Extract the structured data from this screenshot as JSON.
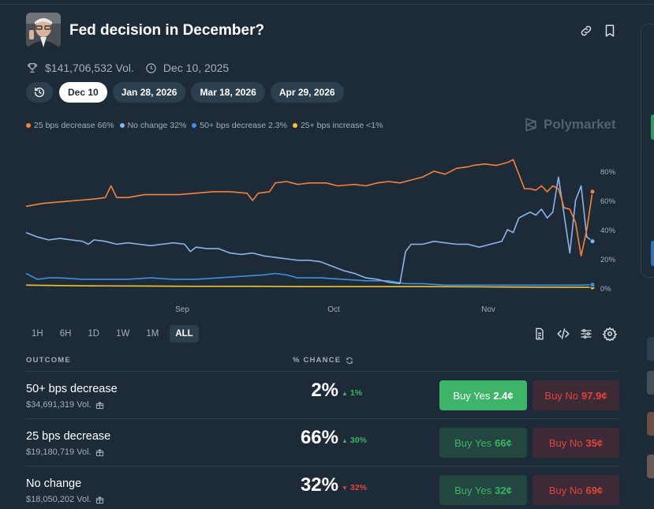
{
  "market": {
    "title": "Fed decision in December?",
    "volume": "$141,706,532 Vol.",
    "end_date": "Dec 10, 2025"
  },
  "date_tabs": [
    {
      "label": "Dec 10",
      "active": true
    },
    {
      "label": "Jan 28, 2026",
      "active": false
    },
    {
      "label": "Mar 18, 2026",
      "active": false
    },
    {
      "label": "Apr 29, 2026",
      "active": false
    }
  ],
  "legend": [
    {
      "label": "25 bps decrease 66%",
      "color": "#f5813b"
    },
    {
      "label": "No change 32%",
      "color": "#8db3e8"
    },
    {
      "label": "50+ bps decrease 2.3%",
      "color": "#3f8fe0"
    },
    {
      "label": "25+ bps increase <1%",
      "color": "#f2c230"
    }
  ],
  "brand": "Polymarket",
  "chart_data": {
    "type": "line",
    "x_ticks": [
      "Sep",
      "Oct",
      "Nov"
    ],
    "y_ticks": [
      "80%",
      "60%",
      "40%",
      "20%",
      "0%"
    ],
    "ylim": [
      0,
      100
    ],
    "x_range": [
      0,
      100
    ],
    "series": [
      {
        "name": "25 bps decrease",
        "color": "#f5813b",
        "points": [
          [
            0,
            56
          ],
          [
            3,
            58
          ],
          [
            6,
            59
          ],
          [
            9,
            60
          ],
          [
            12,
            61
          ],
          [
            14,
            62
          ],
          [
            15,
            70
          ],
          [
            16,
            62
          ],
          [
            18,
            62
          ],
          [
            21,
            64
          ],
          [
            24,
            64
          ],
          [
            27,
            64
          ],
          [
            30,
            65
          ],
          [
            33,
            66
          ],
          [
            36,
            66
          ],
          [
            39,
            65
          ],
          [
            40,
            60
          ],
          [
            41,
            65
          ],
          [
            43,
            66
          ],
          [
            44,
            72
          ],
          [
            46,
            73
          ],
          [
            48,
            71
          ],
          [
            50,
            72
          ],
          [
            53,
            72
          ],
          [
            55,
            70
          ],
          [
            58,
            71
          ],
          [
            60,
            70
          ],
          [
            62,
            72
          ],
          [
            64,
            73
          ],
          [
            66,
            72
          ],
          [
            68,
            74
          ],
          [
            70,
            76
          ],
          [
            72,
            80
          ],
          [
            74,
            78
          ],
          [
            76,
            82
          ],
          [
            78,
            83
          ],
          [
            79,
            84
          ],
          [
            81,
            85
          ],
          [
            83,
            84
          ],
          [
            85,
            86
          ],
          [
            86,
            88
          ],
          [
            87,
            78
          ],
          [
            88,
            68
          ],
          [
            89,
            68
          ],
          [
            90,
            67
          ],
          [
            91,
            70
          ],
          [
            92,
            66
          ],
          [
            93,
            70
          ],
          [
            94,
            68
          ],
          [
            95,
            55
          ],
          [
            96,
            54
          ],
          [
            97,
            45
          ],
          [
            98,
            22
          ],
          [
            99,
            40
          ],
          [
            100,
            66
          ]
        ]
      },
      {
        "name": "No change",
        "color": "#8db3e8",
        "points": [
          [
            0,
            38
          ],
          [
            2,
            35
          ],
          [
            4,
            33
          ],
          [
            6,
            34
          ],
          [
            8,
            33
          ],
          [
            10,
            32
          ],
          [
            11,
            30
          ],
          [
            12,
            33
          ],
          [
            14,
            32
          ],
          [
            16,
            30
          ],
          [
            18,
            31
          ],
          [
            20,
            30
          ],
          [
            22,
            29
          ],
          [
            24,
            30
          ],
          [
            26,
            31
          ],
          [
            28,
            30
          ],
          [
            29,
            25
          ],
          [
            30,
            28
          ],
          [
            32,
            27
          ],
          [
            34,
            27
          ],
          [
            36,
            24
          ],
          [
            38,
            23
          ],
          [
            40,
            24
          ],
          [
            42,
            22
          ],
          [
            44,
            21
          ],
          [
            46,
            20
          ],
          [
            48,
            19
          ],
          [
            50,
            19
          ],
          [
            52,
            18
          ],
          [
            54,
            15
          ],
          [
            56,
            12
          ],
          [
            58,
            10
          ],
          [
            60,
            7
          ],
          [
            62,
            6
          ],
          [
            64,
            4
          ],
          [
            66,
            3
          ],
          [
            67,
            25
          ],
          [
            68,
            30
          ],
          [
            70,
            30
          ],
          [
            72,
            32
          ],
          [
            74,
            31
          ],
          [
            76,
            30
          ],
          [
            78,
            30
          ],
          [
            80,
            28
          ],
          [
            82,
            30
          ],
          [
            84,
            32
          ],
          [
            85,
            40
          ],
          [
            86,
            38
          ],
          [
            87,
            48
          ],
          [
            88,
            50
          ],
          [
            89,
            52
          ],
          [
            90,
            50
          ],
          [
            91,
            54
          ],
          [
            92,
            48
          ],
          [
            93,
            52
          ],
          [
            94,
            76
          ],
          [
            95,
            50
          ],
          [
            96,
            24
          ],
          [
            97,
            60
          ],
          [
            98,
            70
          ],
          [
            99,
            35
          ],
          [
            100,
            32
          ]
        ]
      },
      {
        "name": "50+ bps decrease",
        "color": "#3f8fe0",
        "points": [
          [
            0,
            10
          ],
          [
            2,
            6
          ],
          [
            4,
            7
          ],
          [
            6,
            7
          ],
          [
            10,
            6
          ],
          [
            14,
            6
          ],
          [
            18,
            6
          ],
          [
            22,
            7
          ],
          [
            26,
            6
          ],
          [
            30,
            6
          ],
          [
            34,
            7
          ],
          [
            38,
            8
          ],
          [
            42,
            9
          ],
          [
            44,
            10
          ],
          [
            46,
            9
          ],
          [
            48,
            7
          ],
          [
            52,
            7
          ],
          [
            56,
            6
          ],
          [
            60,
            5
          ],
          [
            64,
            5
          ],
          [
            67,
            3
          ],
          [
            70,
            3
          ],
          [
            74,
            2
          ],
          [
            78,
            2
          ],
          [
            82,
            2
          ],
          [
            86,
            2
          ],
          [
            90,
            2
          ],
          [
            94,
            2
          ],
          [
            98,
            2
          ],
          [
            100,
            2.3
          ]
        ]
      },
      {
        "name": "25+ bps increase",
        "color": "#f2c230",
        "points": [
          [
            0,
            2
          ],
          [
            10,
            1.5
          ],
          [
            20,
            1.4
          ],
          [
            30,
            1.2
          ],
          [
            40,
            1.2
          ],
          [
            50,
            1
          ],
          [
            60,
            1
          ],
          [
            70,
            1
          ],
          [
            80,
            0.8
          ],
          [
            90,
            0.6
          ],
          [
            100,
            0.5
          ]
        ]
      }
    ]
  },
  "time_ranges": [
    {
      "label": "1H",
      "active": false
    },
    {
      "label": "6H",
      "active": false
    },
    {
      "label": "1D",
      "active": false
    },
    {
      "label": "1W",
      "active": false
    },
    {
      "label": "1M",
      "active": false
    },
    {
      "label": "ALL",
      "active": true
    }
  ],
  "table": {
    "header_outcome": "OUTCOME",
    "header_chance": "% CHANCE",
    "rows": [
      {
        "name": "50+ bps decrease",
        "volume": "$34,691,319 Vol.",
        "pct": "2%",
        "change": "1%",
        "direction": "up",
        "yes_label": "Buy Yes",
        "yes_price": "2.4¢",
        "no_label": "Buy No",
        "no_price": "97.9¢"
      },
      {
        "name": "25 bps decrease",
        "volume": "$19,180,719 Vol.",
        "pct": "66%",
        "change": "30%",
        "direction": "up",
        "yes_label": "Buy Yes",
        "yes_price": "66¢",
        "no_label": "Buy No",
        "no_price": "35¢"
      },
      {
        "name": "No change",
        "volume": "$18,050,202 Vol.",
        "pct": "32%",
        "change": "32%",
        "direction": "down",
        "yes_label": "Buy Yes",
        "yes_price": "32¢",
        "no_label": "Buy No",
        "no_price": "69¢"
      }
    ]
  },
  "colors": {
    "background": "#1d2b39",
    "up": "#3db468",
    "down": "#e0453b",
    "muted_text": "#a4aeb8"
  }
}
